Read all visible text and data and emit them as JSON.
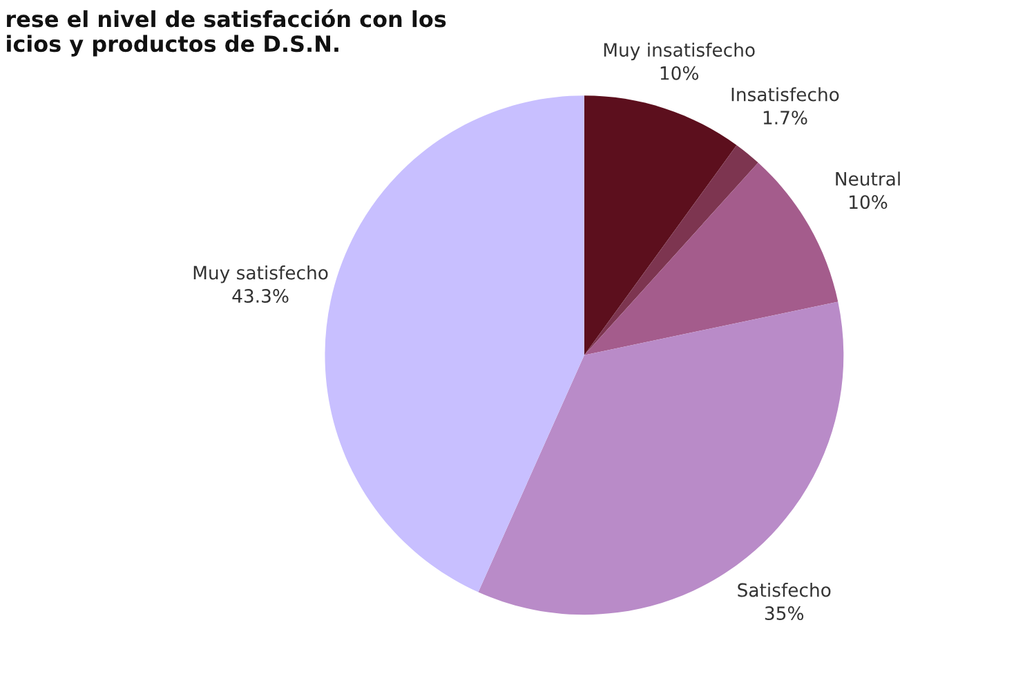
{
  "chart_data": {
    "type": "pie",
    "title": "rese el nivel de satisfacción con los\nicios y productos de D.S.N.",
    "categories": [
      "Muy insatisfecho",
      "Insatisfecho",
      "Neutral",
      "Satisfecho",
      "Muy satisfecho"
    ],
    "values": [
      10,
      1.7,
      10,
      35,
      43.3
    ],
    "value_labels": [
      "10%",
      "1.7%",
      "10%",
      "35%",
      "43.3%"
    ],
    "colors": [
      "#5c0f1d",
      "#7d3550",
      "#a45c8c",
      "#b98bc8",
      "#c8bfff"
    ],
    "legend": false
  }
}
